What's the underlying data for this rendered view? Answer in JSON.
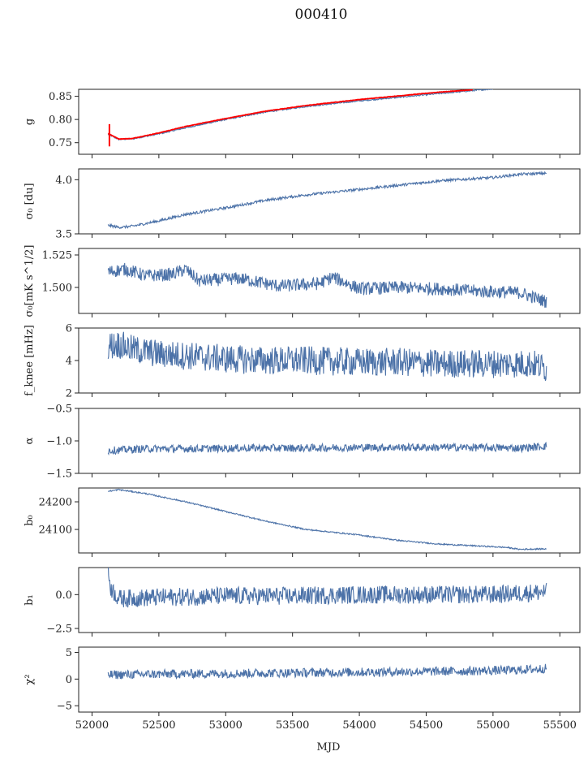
{
  "figure": {
    "title": "000410",
    "xlabel": "MJD"
  },
  "chart_data": [
    {
      "type": "line",
      "panel": "g",
      "ylabel": "g",
      "xlim": [
        51900,
        55650
      ],
      "ylim": [
        0.725,
        0.865
      ],
      "yticks": [
        0.75,
        0.8,
        0.85
      ],
      "ytick_labels": [
        "0.75",
        "0.80",
        "0.85"
      ],
      "series": [
        {
          "color": "#4c72a8",
          "x": [
            52120,
            52200,
            52300,
            52500,
            52700,
            53000,
            53300,
            53600,
            54000,
            54300,
            54600,
            55000
          ],
          "values": [
            0.768,
            0.757,
            0.758,
            0.769,
            0.782,
            0.8,
            0.816,
            0.828,
            0.84,
            0.848,
            0.856,
            0.866
          ]
        },
        {
          "color": "#ff0000",
          "x": [
            52120,
            52200,
            52300,
            52500,
            52700,
            53000,
            53300,
            53600,
            54000,
            54300,
            54600,
            54850
          ],
          "values": [
            0.77,
            0.758,
            0.759,
            0.771,
            0.785,
            0.802,
            0.818,
            0.83,
            0.843,
            0.851,
            0.859,
            0.864
          ]
        }
      ]
    },
    {
      "type": "line",
      "panel": "sigma0_du",
      "ylabel": "σ₀ [du]",
      "xlim": [
        51900,
        55650
      ],
      "ylim": [
        3.5,
        4.1
      ],
      "yticks": [
        3.5,
        4.0
      ],
      "ytick_labels": [
        "3.5",
        "4.0"
      ],
      "series": [
        {
          "color": "#4c72a8",
          "x": [
            52120,
            52200,
            52300,
            52500,
            52700,
            53000,
            53300,
            53600,
            54000,
            54300,
            54600,
            55000,
            55200,
            55400
          ],
          "values": [
            3.58,
            3.56,
            3.57,
            3.62,
            3.68,
            3.74,
            3.81,
            3.86,
            3.91,
            3.95,
            3.99,
            4.02,
            4.05,
            4.06
          ]
        }
      ]
    },
    {
      "type": "line",
      "panel": "sigma0_mK",
      "ylabel": "σ₀[mK s^1/2]",
      "xlim": [
        51900,
        55650
      ],
      "ylim": [
        1.48,
        1.53
      ],
      "yticks": [
        1.5,
        1.525
      ],
      "ytick_labels": [
        "1.500",
        "1.525"
      ],
      "series": [
        {
          "color": "#4c72a8",
          "x": [
            52120,
            52250,
            52400,
            52600,
            52700,
            52800,
            53100,
            53400,
            53700,
            53800,
            54000,
            54300,
            54600,
            54900,
            55200,
            55400
          ],
          "values": [
            1.512,
            1.514,
            1.509,
            1.51,
            1.514,
            1.505,
            1.507,
            1.501,
            1.503,
            1.508,
            1.499,
            1.5,
            1.499,
            1.497,
            1.496,
            1.489
          ]
        }
      ]
    },
    {
      "type": "line",
      "panel": "fknee",
      "ylabel": "f_knee [mHz]",
      "xlim": [
        51900,
        55650
      ],
      "ylim": [
        2,
        6
      ],
      "yticks": [
        2,
        4,
        6
      ],
      "ytick_labels": [
        "2",
        "4",
        "6"
      ],
      "series": [
        {
          "color": "#4c72a8",
          "x": [
            52120,
            52200,
            52300,
            52500,
            52700,
            53000,
            53300,
            53600,
            54000,
            54300,
            54600,
            55000,
            55300,
            55400
          ],
          "values": [
            4.9,
            5.0,
            4.7,
            4.4,
            4.3,
            4.1,
            4.0,
            4.0,
            3.9,
            3.9,
            3.8,
            3.8,
            3.8,
            3.5
          ]
        }
      ]
    },
    {
      "type": "line",
      "panel": "alpha",
      "ylabel": "α",
      "xlim": [
        51900,
        55650
      ],
      "ylim": [
        -1.5,
        -0.5
      ],
      "yticks": [
        -1.5,
        -1.0,
        -0.5
      ],
      "ytick_labels": [
        "−1.5",
        "−1.0",
        "−0.5"
      ],
      "series": [
        {
          "color": "#4c72a8",
          "x": [
            52120,
            52400,
            52800,
            53200,
            53600,
            54000,
            54400,
            54800,
            55200,
            55400
          ],
          "values": [
            -1.15,
            -1.12,
            -1.12,
            -1.11,
            -1.11,
            -1.1,
            -1.1,
            -1.1,
            -1.11,
            -1.08
          ]
        }
      ]
    },
    {
      "type": "line",
      "panel": "b0",
      "ylabel": "b₀",
      "xlim": [
        51900,
        55650
      ],
      "ylim": [
        24015,
        24250
      ],
      "yticks": [
        24100,
        24200
      ],
      "ytick_labels": [
        "24100",
        "24200"
      ],
      "series": [
        {
          "color": "#4c72a8",
          "x": [
            52120,
            52200,
            52400,
            52700,
            53000,
            53300,
            53600,
            54000,
            54300,
            54600,
            54900,
            55100,
            55200,
            55400
          ],
          "values": [
            24238,
            24244,
            24230,
            24200,
            24165,
            24130,
            24100,
            24080,
            24060,
            24047,
            24040,
            24035,
            24028,
            24030
          ]
        }
      ]
    },
    {
      "type": "line",
      "panel": "b1",
      "ylabel": "b₁",
      "xlim": [
        51900,
        55650
      ],
      "ylim": [
        -2.8,
        2.0
      ],
      "yticks": [
        -2.5,
        0.0
      ],
      "ytick_labels": [
        "−2.5",
        "0.0"
      ],
      "series": [
        {
          "color": "#4c72a8",
          "x": [
            52120,
            52140,
            52200,
            52500,
            53000,
            53500,
            54000,
            54500,
            55000,
            55400
          ],
          "values": [
            1.8,
            0.5,
            -0.3,
            -0.2,
            -0.1,
            -0.1,
            0.0,
            0.0,
            0.0,
            0.2
          ]
        }
      ]
    },
    {
      "type": "line",
      "panel": "chi2",
      "ylabel": "χ²",
      "xlim": [
        51900,
        55650
      ],
      "ylim": [
        -6.2,
        6.0
      ],
      "yticks": [
        -5,
        0,
        5
      ],
      "ytick_labels": [
        "−5",
        "0",
        "5"
      ],
      "xticks": [
        52000,
        52500,
        53000,
        53500,
        54000,
        54500,
        55000,
        55500
      ],
      "xtick_labels": [
        "52000",
        "52500",
        "53000",
        "53500",
        "54000",
        "54500",
        "55000",
        "55500"
      ],
      "series": [
        {
          "color": "#4c72a8",
          "x": [
            52120,
            52400,
            52800,
            53200,
            53600,
            54000,
            54400,
            54800,
            55200,
            55400
          ],
          "values": [
            0.8,
            0.9,
            1.0,
            1.1,
            1.2,
            1.3,
            1.4,
            1.5,
            1.7,
            2.0
          ]
        }
      ]
    }
  ]
}
